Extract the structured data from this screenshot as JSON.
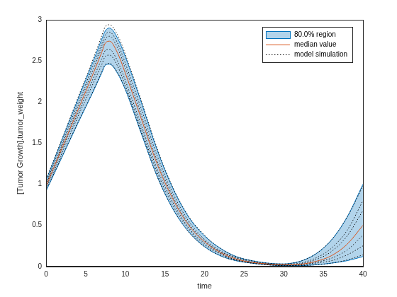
{
  "chart_data": {
    "type": "line",
    "x_label": "time",
    "y_label": "[Tumor Growth].tumor_weight",
    "x": [
      0,
      2,
      4,
      6,
      7,
      7.5,
      8,
      9,
      10,
      12,
      14,
      16,
      18,
      20,
      22,
      24,
      26,
      28,
      30,
      31,
      32,
      34,
      36,
      38,
      40
    ],
    "series": [
      {
        "name": "80.0% region",
        "type": "area",
        "color": "#0072bd",
        "upper": [
          1.05,
          1.54,
          2.03,
          2.51,
          2.76,
          2.87,
          2.9,
          2.78,
          2.55,
          2.0,
          1.42,
          0.95,
          0.6,
          0.37,
          0.22,
          0.12,
          0.07,
          0.04,
          0.03,
          0.04,
          0.06,
          0.15,
          0.32,
          0.6,
          1.0
        ],
        "lower": [
          0.92,
          1.33,
          1.74,
          2.14,
          2.35,
          2.45,
          2.46,
          2.35,
          2.15,
          1.62,
          1.1,
          0.7,
          0.42,
          0.24,
          0.13,
          0.07,
          0.04,
          0.02,
          0.01,
          0.01,
          0.01,
          0.02,
          0.04,
          0.07,
          0.12
        ]
      },
      {
        "name": "median value",
        "type": "line",
        "color": "#d95319",
        "line_style": "solid",
        "values": [
          0.98,
          1.44,
          1.9,
          2.36,
          2.6,
          2.72,
          2.74,
          2.6,
          2.35,
          1.8,
          1.25,
          0.82,
          0.5,
          0.3,
          0.17,
          0.09,
          0.05,
          0.03,
          0.02,
          0.02,
          0.025,
          0.06,
          0.13,
          0.27,
          0.5
        ]
      },
      {
        "name": "model simulation",
        "type": "line",
        "color": "#000000",
        "line_style": "dotted",
        "runs": [
          [
            1.06,
            1.55,
            2.05,
            2.54,
            2.8,
            2.92,
            2.94,
            2.82,
            2.58,
            2.02,
            1.44,
            0.96,
            0.61,
            0.38,
            0.22,
            0.12,
            0.07,
            0.04,
            0.03,
            0.04,
            0.06,
            0.15,
            0.32,
            0.6,
            0.98
          ],
          [
            0.93,
            1.34,
            1.75,
            2.15,
            2.36,
            2.46,
            2.47,
            2.36,
            2.16,
            1.63,
            1.1,
            0.7,
            0.42,
            0.24,
            0.13,
            0.07,
            0.04,
            0.02,
            0.01,
            0.01,
            0.01,
            0.02,
            0.04,
            0.08,
            0.14
          ],
          [
            1.0,
            1.47,
            1.94,
            2.41,
            2.65,
            2.77,
            2.8,
            2.66,
            2.41,
            1.85,
            1.29,
            0.85,
            0.52,
            0.31,
            0.18,
            0.1,
            0.05,
            0.03,
            0.02,
            0.02,
            0.03,
            0.08,
            0.18,
            0.37,
            0.68
          ],
          [
            0.97,
            1.42,
            1.86,
            2.3,
            2.52,
            2.63,
            2.64,
            2.5,
            2.26,
            1.72,
            1.19,
            0.78,
            0.47,
            0.28,
            0.16,
            0.08,
            0.05,
            0.03,
            0.02,
            0.02,
            0.02,
            0.05,
            0.1,
            0.2,
            0.38
          ],
          [
            1.02,
            1.5,
            1.98,
            2.46,
            2.7,
            2.82,
            2.85,
            2.72,
            2.47,
            1.92,
            1.35,
            0.89,
            0.55,
            0.33,
            0.19,
            0.11,
            0.06,
            0.03,
            0.02,
            0.03,
            0.04,
            0.1,
            0.22,
            0.44,
            0.8
          ],
          [
            0.95,
            1.38,
            1.82,
            2.24,
            2.45,
            2.56,
            2.57,
            2.44,
            2.2,
            1.67,
            1.15,
            0.74,
            0.45,
            0.26,
            0.15,
            0.08,
            0.04,
            0.02,
            0.01,
            0.01,
            0.02,
            0.04,
            0.07,
            0.14,
            0.25
          ]
        ]
      }
    ],
    "xlim": [
      0,
      40
    ],
    "xticks": [
      0,
      5,
      10,
      15,
      20,
      25,
      30,
      35,
      40
    ],
    "ylim": [
      0,
      3
    ],
    "yticks": [
      0,
      0.5,
      1,
      1.5,
      2,
      2.5,
      3
    ],
    "grid": false,
    "legend": "northeast"
  }
}
